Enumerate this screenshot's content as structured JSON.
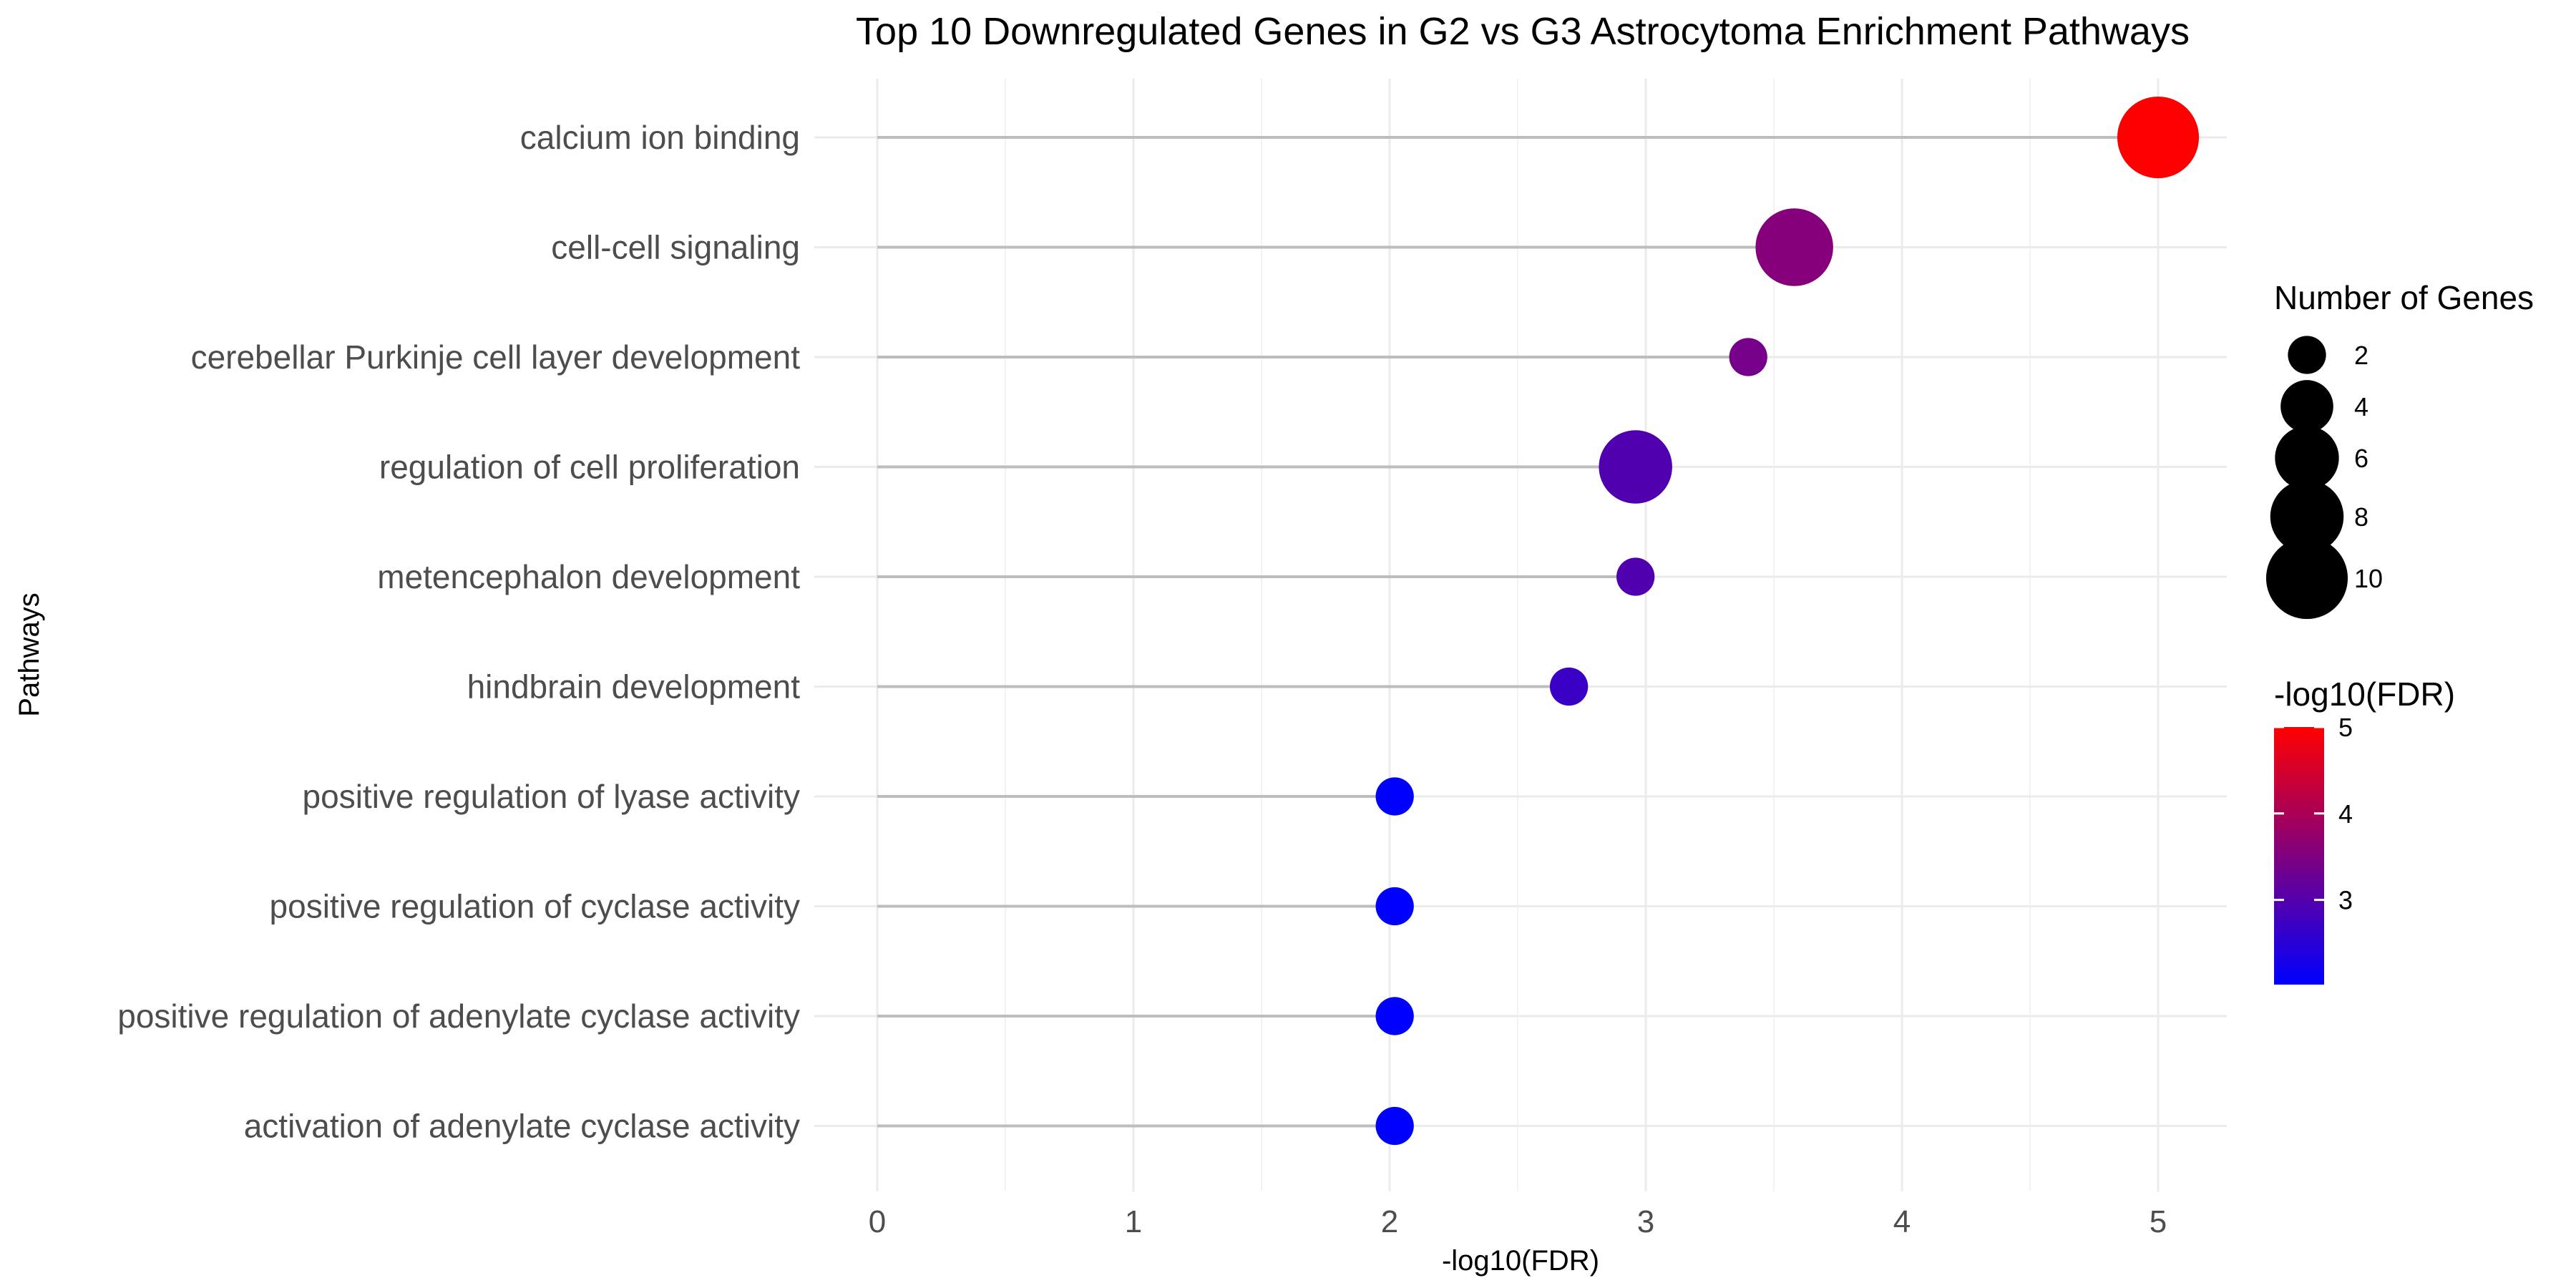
{
  "chart_data": {
    "type": "lollipop",
    "title": "Top 10 Downregulated Genes in G2 vs G3 Astrocytoma Enrichment Pathways",
    "xlabel": "-log10(FDR)",
    "ylabel": "Pathways",
    "xlim": [
      -0.1,
      5.25
    ],
    "x_ticks": [
      0,
      1,
      2,
      3,
      4,
      5
    ],
    "grid": true,
    "categories": [
      "calcium ion binding",
      "cell-cell signaling",
      "cerebellar Purkinje cell layer development",
      "regulation of cell proliferation",
      "metencephalon development",
      "hindbrain development",
      "positive regulation of lyase activity",
      "positive regulation of cyclase activity",
      "positive regulation of adenylate cyclase activity",
      "activation of adenylate cyclase activity"
    ],
    "values": [
      5.0,
      3.58,
      3.4,
      2.96,
      2.96,
      2.7,
      2.02,
      2.02,
      2.02,
      2.02
    ],
    "gene_counts": [
      10,
      9,
      2,
      8,
      2,
      2,
      2,
      2,
      2,
      2
    ],
    "size_legend": {
      "title": "Number of Genes",
      "entries": [
        "2",
        "4",
        "6",
        "8",
        "10"
      ],
      "values": [
        2,
        4,
        6,
        8,
        10
      ]
    },
    "color_legend": {
      "title": "-log10(FDR)",
      "ticks": [
        "3",
        "4",
        "5"
      ],
      "tick_values": [
        3,
        4,
        5
      ],
      "range": [
        2.02,
        5.0
      ],
      "low_color": "#0000ff",
      "high_color": "#ff0000"
    },
    "legend_position": "right"
  }
}
